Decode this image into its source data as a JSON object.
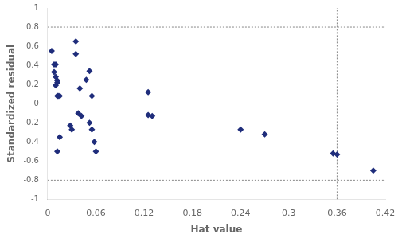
{
  "chart_data": {
    "type": "scatter",
    "x": [
      0.005,
      0.008,
      0.01,
      0.008,
      0.01,
      0.012,
      0.012,
      0.01,
      0.012,
      0.013,
      0.015,
      0.035,
      0.035,
      0.028,
      0.03,
      0.04,
      0.038,
      0.042,
      0.048,
      0.052,
      0.052,
      0.055,
      0.055,
      0.058,
      0.06,
      0.125,
      0.13,
      0.125,
      0.24,
      0.27,
      0.355,
      0.36,
      0.405,
      0.015,
      0.012
    ],
    "values": [
      0.55,
      0.41,
      0.41,
      0.33,
      0.28,
      0.24,
      0.22,
      0.19,
      0.08,
      0.08,
      0.08,
      0.65,
      0.52,
      -0.23,
      -0.27,
      0.16,
      -0.1,
      -0.13,
      0.25,
      0.34,
      -0.2,
      0.08,
      -0.27,
      -0.4,
      -0.5,
      -0.12,
      -0.13,
      0.12,
      -0.27,
      -0.32,
      -0.52,
      -0.53,
      -0.7,
      -0.35,
      -0.5
    ],
    "color": "#1f2d7b",
    "marker": "diamond",
    "hlines": [
      0.8,
      -0.8
    ],
    "vlines": [
      0.36
    ],
    "xlabel": "Hat value",
    "ylabel": "Standardized residual",
    "xlim": [
      0,
      0.42
    ],
    "ylim": [
      -1,
      1
    ],
    "xticks": [
      0,
      0.06,
      0.12,
      0.18,
      0.24,
      0.3,
      0.36,
      0.42
    ],
    "yticks": [
      -1,
      -0.8,
      -0.6,
      -0.4,
      -0.2,
      0,
      0.2,
      0.4,
      0.6,
      0.8,
      1
    ],
    "grid": false
  }
}
